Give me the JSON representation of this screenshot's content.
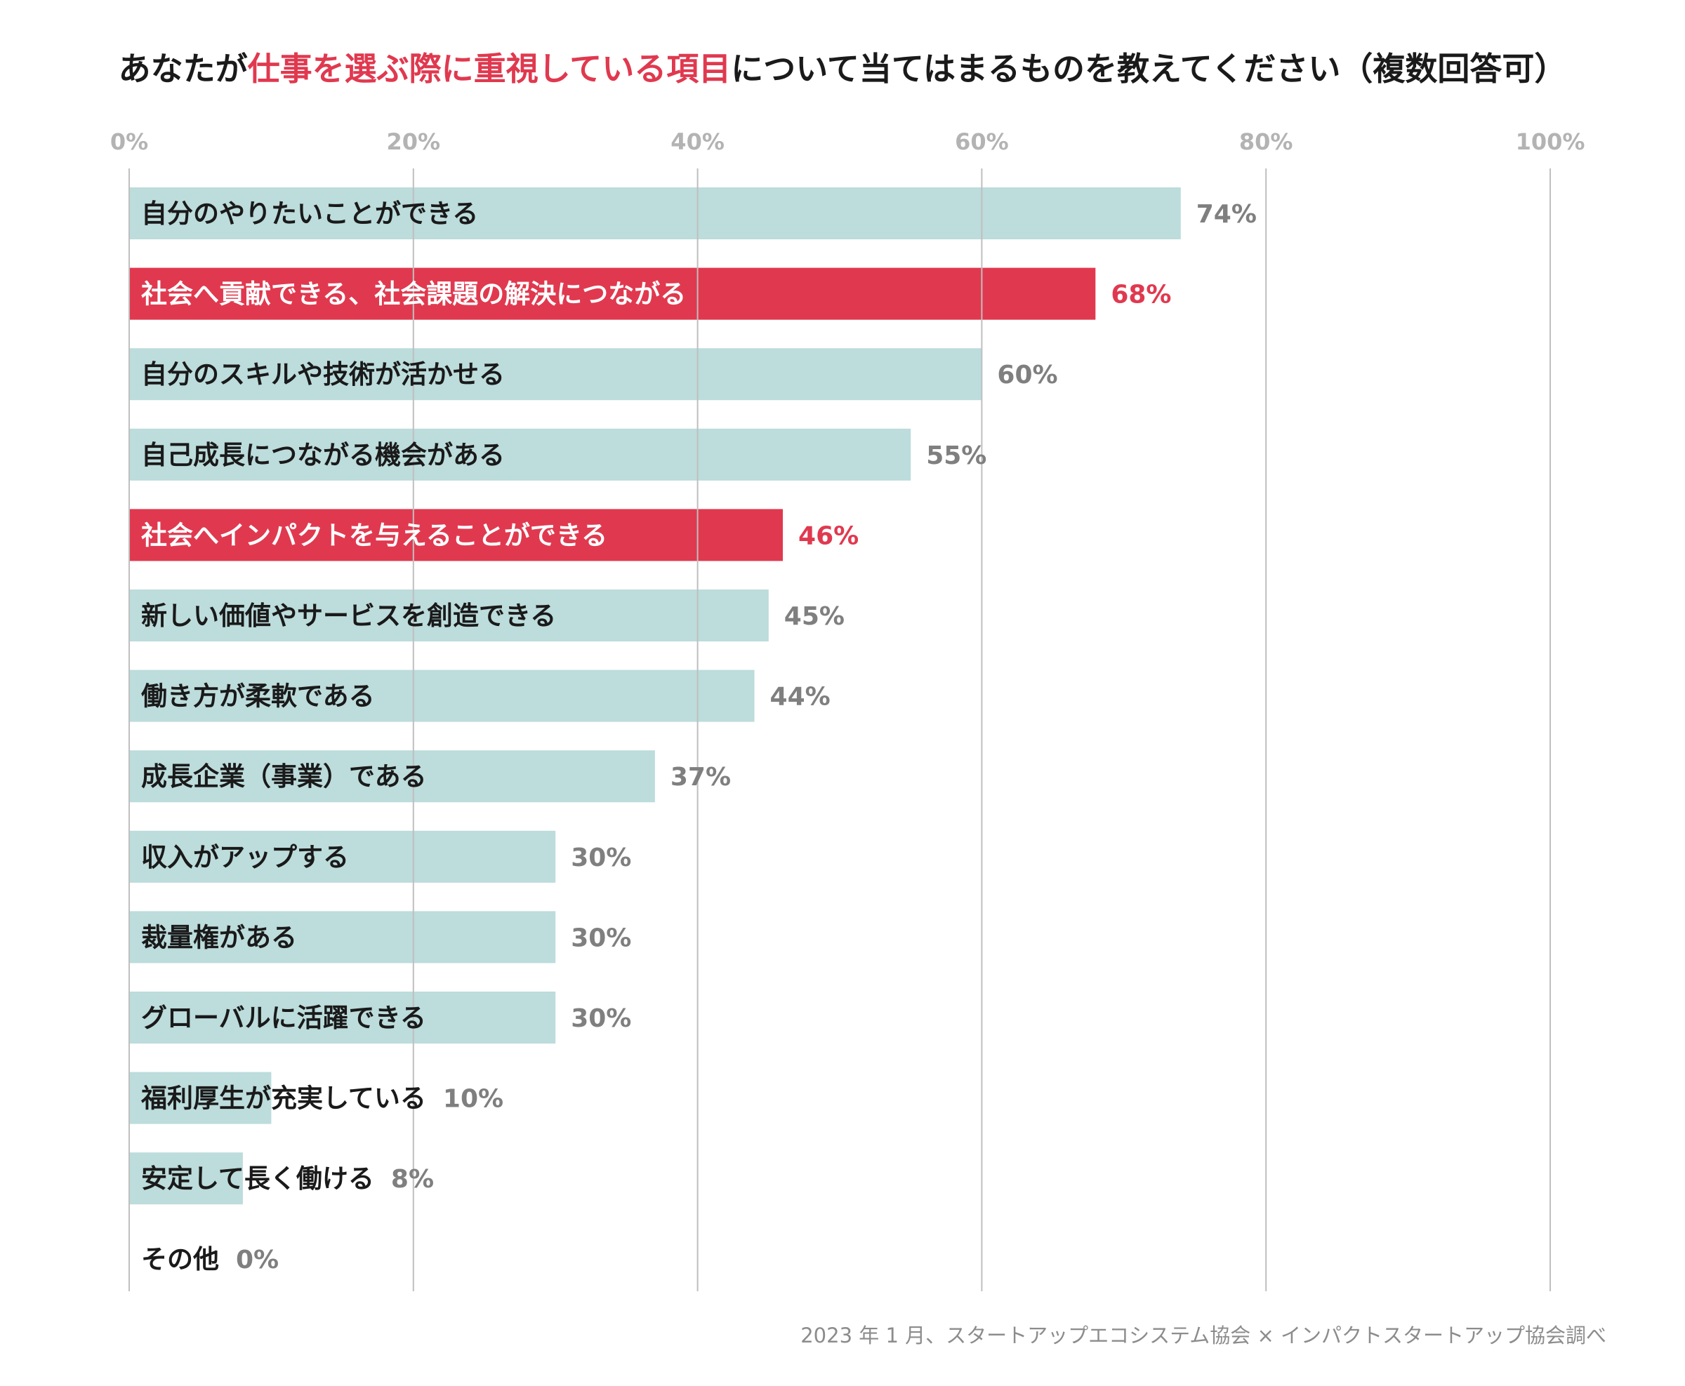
{
  "chart_data": {
    "type": "bar",
    "orientation": "horizontal",
    "title": {
      "prefix": "あなたが",
      "highlight": "仕事を選ぶ際に重視している項目",
      "suffix": "について当てはまるものを教えてください（複数回答可）"
    },
    "xlim": [
      0,
      100
    ],
    "ticks": [
      0,
      20,
      40,
      60,
      80,
      100
    ],
    "tick_labels": [
      "0%",
      "20%",
      "40%",
      "60%",
      "80%",
      "100%"
    ],
    "grid": true,
    "categories": [
      "自分のやりたいことができる",
      "社会へ貢献できる、社会課題の解決につながる",
      "自分のスキルや技術が活かせる",
      "自己成長につながる機会がある",
      "社会へインパクトを与えることができる",
      "新しい価値やサービスを創造できる",
      "働き方が柔軟である",
      "成長企業（事業）である",
      "収入がアップする",
      "裁量権がある",
      "グローバルに活躍できる",
      "福利厚生が充実している",
      "安定して長く働ける",
      "その他"
    ],
    "values": [
      74,
      68,
      60,
      55,
      46,
      45,
      44,
      37,
      30,
      30,
      30,
      10,
      8,
      0
    ],
    "value_labels": [
      "74%",
      "68%",
      "60%",
      "55%",
      "46%",
      "45%",
      "44%",
      "37%",
      "30%",
      "30%",
      "30%",
      "10%",
      "8%",
      "0%"
    ],
    "highlighted": [
      false,
      true,
      false,
      false,
      true,
      false,
      false,
      false,
      false,
      false,
      false,
      false,
      false,
      false
    ],
    "source": "2023 年 1 月、スタートアップエコシステム協会 × インパクトスタートアップ協会調べ"
  },
  "colors": {
    "bar_default": "#bddcdc",
    "bar_highlight": "#e0394f",
    "label_default": "#1a1a1a",
    "label_on_highlight": "#ffffff",
    "value_default": "#7f7f7f",
    "value_highlight": "#e0394f",
    "grid": "#bfbfbf",
    "tick": "#b3b3b3",
    "title_highlight": "#e0394f"
  }
}
